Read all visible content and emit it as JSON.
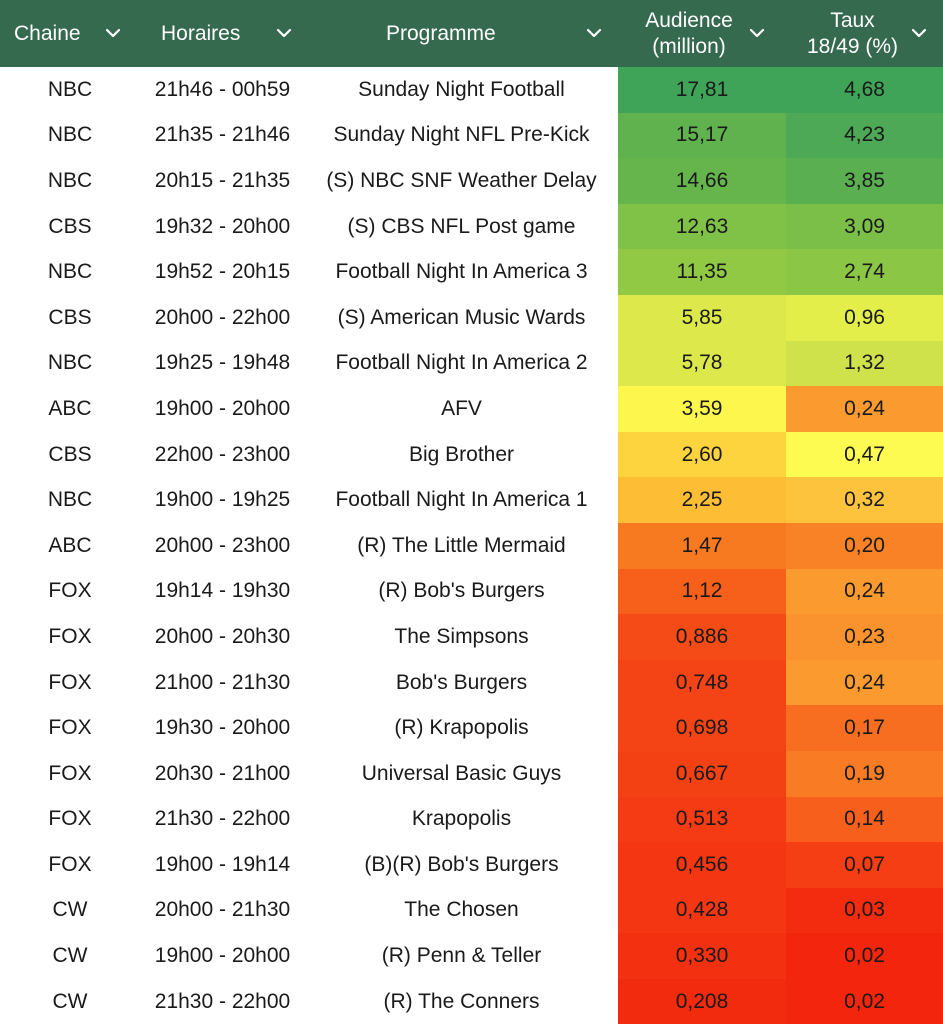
{
  "headers": [
    {
      "line1": "Chaine",
      "line2": ""
    },
    {
      "line1": "Horaires",
      "line2": ""
    },
    {
      "line1": "Programme",
      "line2": ""
    },
    {
      "line1": "Audience",
      "line2": "(million)"
    },
    {
      "line1": "Taux",
      "line2": "18/49 (%)"
    }
  ],
  "colors": {
    "header_bg": "#356a4f",
    "header_text": "#ffffff",
    "cell_text": "#1a1a1a"
  },
  "rows": [
    {
      "channel": "NBC",
      "time": "21h46 - 00h59",
      "program": "Sunday Night Football",
      "audience": "17,81",
      "rate": "4,68",
      "aud_color": "#3fa458",
      "rate_color": "#3fa458"
    },
    {
      "channel": "NBC",
      "time": "21h35 - 21h46",
      "program": "Sunday Night NFL Pre-Kick",
      "audience": "15,17",
      "rate": "4,23",
      "aud_color": "#60b24f",
      "rate_color": "#4da955"
    },
    {
      "channel": "NBC",
      "time": "20h15 - 21h35",
      "program": "(S) NBC SNF Weather Delay",
      "audience": "14,66",
      "rate": "3,85",
      "aud_color": "#66b44c",
      "rate_color": "#5aaf51"
    },
    {
      "channel": "CBS",
      "time": "19h32 - 20h00",
      "program": "(S) CBS NFL Post game",
      "audience": "12,63",
      "rate": "3,09",
      "aud_color": "#80c147",
      "rate_color": "#7bbf49"
    },
    {
      "channel": "NBC",
      "time": "19h52 - 20h15",
      "program": "Football Night In America 3",
      "audience": "11,35",
      "rate": "2,74",
      "aud_color": "#91c944",
      "rate_color": "#8cc645"
    },
    {
      "channel": "CBS",
      "time": "20h00 - 22h00",
      "program": "(S) American Music Wards",
      "audience": "5,85",
      "rate": "0,96",
      "aud_color": "#dde94a",
      "rate_color": "#e3ee4b"
    },
    {
      "channel": "NBC",
      "time": "19h25 - 19h48",
      "program": "Football Night In America 2",
      "audience": "5,78",
      "rate": "1,32",
      "aud_color": "#dde94a",
      "rate_color": "#cfe24c"
    },
    {
      "channel": "ABC",
      "time": "19h00 - 20h00",
      "program": "AFV",
      "audience": "3,59",
      "rate": "0,24",
      "aud_color": "#fdf64c",
      "rate_color": "#fb9a2f"
    },
    {
      "channel": "CBS",
      "time": "22h00 - 23h00",
      "program": "Big Brother",
      "audience": "2,60",
      "rate": "0,47",
      "aud_color": "#fdd43d",
      "rate_color": "#fdfb52"
    },
    {
      "channel": "NBC",
      "time": "19h00 - 19h25",
      "program": "Football Night In America 1",
      "audience": "2,25",
      "rate": "0,32",
      "aud_color": "#fdbe35",
      "rate_color": "#fdc33c"
    },
    {
      "channel": "ABC",
      "time": "20h00 - 23h00",
      "program": "(R) The Little Mermaid",
      "audience": "1,47",
      "rate": "0,20",
      "aud_color": "#f77a21",
      "rate_color": "#f98226"
    },
    {
      "channel": "FOX",
      "time": "19h14 - 19h30",
      "program": "(R) Bob's Burgers",
      "audience": "1,12",
      "rate": "0,24",
      "aud_color": "#f6601a",
      "rate_color": "#fb9a2f"
    },
    {
      "channel": "FOX",
      "time": "20h00 - 20h30",
      "program": "The Simpsons",
      "audience": "0,886",
      "rate": "0,23",
      "aud_color": "#f54b16",
      "rate_color": "#fa932d"
    },
    {
      "channel": "FOX",
      "time": "21h00 - 21h30",
      "program": "Bob's Burgers",
      "audience": "0,748",
      "rate": "0,24",
      "aud_color": "#f44415",
      "rate_color": "#fb9a2f"
    },
    {
      "channel": "FOX",
      "time": "19h30 - 20h00",
      "program": "(R) Krapopolis",
      "audience": "0,698",
      "rate": "0,17",
      "aud_color": "#f44415",
      "rate_color": "#f86e20"
    },
    {
      "channel": "FOX",
      "time": "20h30 - 21h00",
      "program": "Universal Basic Guys",
      "audience": "0,667",
      "rate": "0,19",
      "aud_color": "#f44114",
      "rate_color": "#f97c24"
    },
    {
      "channel": "FOX",
      "time": "21h30 - 22h00",
      "program": "Krapopolis",
      "audience": "0,513",
      "rate": "0,14",
      "aud_color": "#f43b13",
      "rate_color": "#f7601c"
    },
    {
      "channel": "FOX",
      "time": "19h00 - 19h14",
      "program": "(B)(R) Bob's Burgers",
      "audience": "0,456",
      "rate": "0,07",
      "aud_color": "#f43712",
      "rate_color": "#f53e13"
    },
    {
      "channel": "CW",
      "time": "20h00 - 21h30",
      "program": "The Chosen",
      "audience": "0,428",
      "rate": "0,03",
      "aud_color": "#f43712",
      "rate_color": "#f32b0f"
    },
    {
      "channel": "CW",
      "time": "19h00 - 20h00",
      "program": "(R) Penn & Teller",
      "audience": "0,330",
      "rate": "0,02",
      "aud_color": "#f3300f",
      "rate_color": "#f3260d"
    },
    {
      "channel": "CW",
      "time": "21h30 - 22h00",
      "program": "(R) The Conners",
      "audience": "0,208",
      "rate": "0,02",
      "aud_color": "#f22a0e",
      "rate_color": "#f3260d"
    }
  ]
}
